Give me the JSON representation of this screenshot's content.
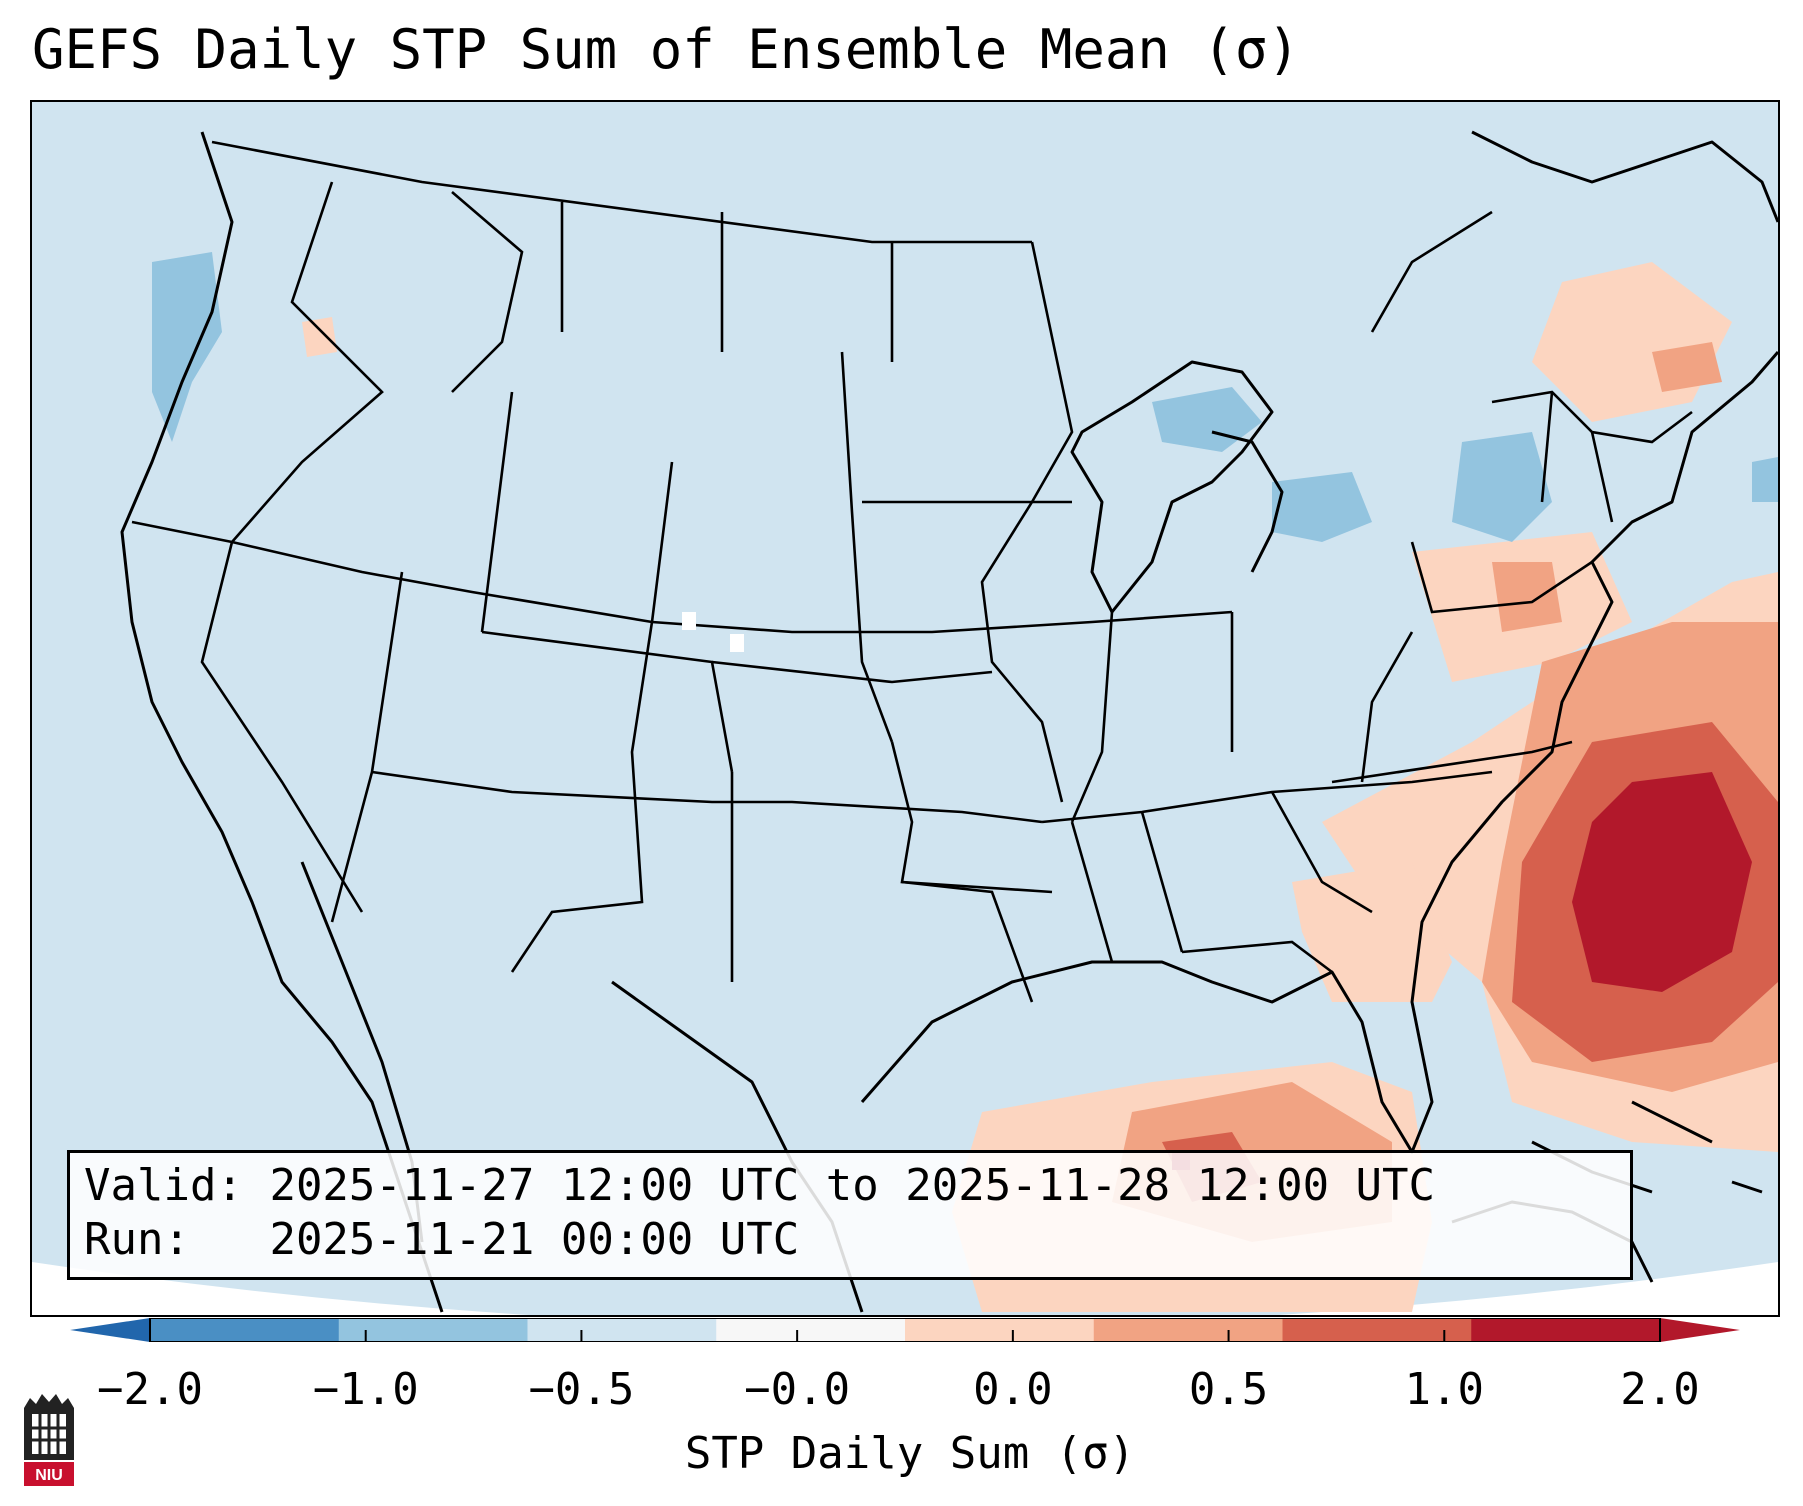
{
  "title": "GEFS Daily STP Sum of Ensemble Mean (σ)",
  "info": {
    "valid_label": "Valid:",
    "valid_value": "2025-11-27 12:00 UTC to 2025-11-28 12:00 UTC",
    "run_label": "Run:",
    "run_value": "2025-11-21 00:00 UTC"
  },
  "colorbar": {
    "label": "STP Daily Sum (σ)",
    "ticks": [
      "−2.0",
      "−1.0",
      "−0.5",
      "−0.0",
      "0.0",
      "0.5",
      "1.0",
      "2.0"
    ],
    "bin_colors": [
      "#4a8fc4",
      "#93c4df",
      "#d0e4f0",
      "#f7f7f7",
      "#fcd5c0",
      "#f1a383",
      "#d6604d",
      "#b2182b"
    ],
    "under_color": "#2166ac",
    "over_color": "#b2182b"
  },
  "logo": {
    "text": "NIU"
  },
  "map": {
    "background_color": "#d0e4f0",
    "coastline_color": "#000000"
  }
}
